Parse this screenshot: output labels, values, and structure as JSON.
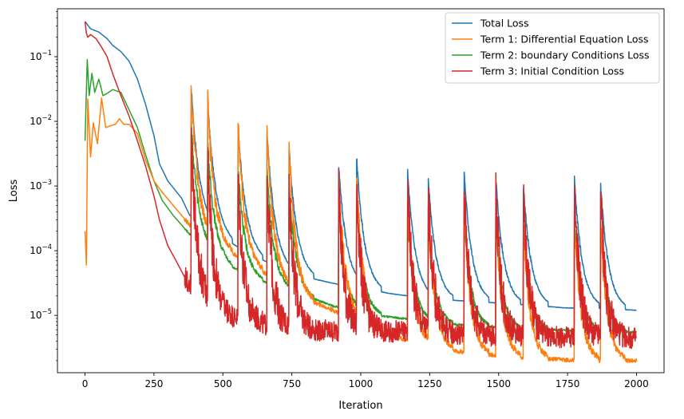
{
  "chart_data": {
    "type": "line",
    "title": "",
    "xlabel": "Iteration",
    "ylabel": "Loss",
    "xlim": [
      -100,
      2100
    ],
    "ylim": [
      1.3e-06,
      0.55
    ],
    "yscale": "log",
    "grid": false,
    "legend_position": "top-right",
    "x_ticks": [
      0,
      250,
      500,
      750,
      1000,
      1250,
      1500,
      1750,
      2000
    ],
    "x_tick_labels": [
      "0",
      "250",
      "500",
      "750",
      "1000",
      "1250",
      "1500",
      "1750",
      "2000"
    ],
    "y_ticks": [
      1e-05,
      0.0001,
      0.001,
      0.01,
      0.1
    ],
    "y_tick_labels": [
      {
        "base": "10",
        "exp": "−5"
      },
      {
        "base": "10",
        "exp": "−4"
      },
      {
        "base": "10",
        "exp": "−3"
      },
      {
        "base": "10",
        "exp": "−2"
      },
      {
        "base": "10",
        "exp": "−1"
      }
    ],
    "spike_iterations": [
      385,
      445,
      555,
      660,
      740,
      920,
      985,
      1170,
      1245,
      1375,
      1490,
      1590,
      1775,
      1870
    ],
    "series": [
      {
        "name": "Total Loss",
        "color": "#1f77b4",
        "x": [
          0,
          20,
          50,
          80,
          100,
          130,
          160,
          190,
          220,
          250,
          270,
          300,
          350,
          380,
          420,
          500,
          560,
          650,
          750,
          850,
          920,
          1000,
          1100,
          1170,
          1250,
          1350,
          1450,
          1550,
          1650,
          1750,
          1850,
          2000
        ],
        "values": [
          0.35,
          0.27,
          0.24,
          0.19,
          0.15,
          0.12,
          0.085,
          0.045,
          0.018,
          0.006,
          0.0022,
          0.0012,
          0.00065,
          0.00035,
          0.00028,
          0.00016,
          0.00011,
          7e-05,
          4.5e-05,
          3.5e-05,
          3e-05,
          2.7e-05,
          2.2e-05,
          2e-05,
          1.8e-05,
          1.7e-05,
          1.6e-05,
          1.5e-05,
          1.4e-05,
          1.3e-05,
          1.3e-05,
          1.2e-05
        ]
      },
      {
        "name": "Term 1: Differential Equation Loss",
        "color": "#ff7f0e",
        "x": [
          0,
          5,
          10,
          20,
          30,
          45,
          60,
          75,
          90,
          110,
          125,
          140,
          160,
          190,
          220,
          250,
          280,
          320,
          380,
          450,
          520,
          600,
          700,
          800,
          900,
          1000,
          1100,
          1200,
          1300,
          1400,
          1500,
          1600,
          1700,
          1800,
          1900,
          2000
        ],
        "values": [
          0.0002,
          6e-05,
          0.022,
          0.0028,
          0.0095,
          0.0045,
          0.023,
          0.008,
          0.0085,
          0.009,
          0.011,
          0.009,
          0.009,
          0.0065,
          0.0025,
          0.0012,
          0.0008,
          0.0005,
          0.00025,
          0.00015,
          0.0001,
          6e-05,
          3.5e-05,
          1.8e-05,
          1.2e-05,
          7.5e-06,
          5e-06,
          3.8e-06,
          3e-06,
          2.6e-06,
          2.4e-06,
          2.2e-06,
          2.1e-06,
          2e-06,
          2e-06,
          2e-06
        ]
      },
      {
        "name": "Term 2: boundary Conditions Loss",
        "color": "#2ca02c",
        "x": [
          0,
          8,
          15,
          25,
          35,
          50,
          65,
          80,
          100,
          130,
          160,
          190,
          220,
          250,
          280,
          320,
          380,
          450,
          520,
          600,
          700,
          800,
          900,
          1000,
          1100,
          1200,
          1300,
          1400,
          1500,
          1600,
          1700,
          1800,
          1900,
          2000
        ],
        "values": [
          0.005,
          0.09,
          0.025,
          0.055,
          0.028,
          0.045,
          0.025,
          0.027,
          0.031,
          0.028,
          0.015,
          0.008,
          0.003,
          0.0012,
          0.0006,
          0.00035,
          0.00018,
          0.0001,
          6e-05,
          4e-05,
          2.8e-05,
          2e-05,
          1.4e-05,
          1.1e-05,
          9.5e-06,
          8.5e-06,
          7.5e-06,
          7e-06,
          6.5e-06,
          6e-06,
          6e-06,
          5.7e-06,
          5.6e-06,
          5.5e-06
        ]
      },
      {
        "name": "Term 3: Initial Condition Loss",
        "color": "#d62728",
        "x": [
          0,
          5,
          10,
          20,
          40,
          60,
          80,
          100,
          130,
          160,
          190,
          220,
          250,
          270,
          300,
          330,
          360,
          380,
          450,
          520,
          600,
          700,
          800,
          900,
          1000,
          1100,
          1200,
          1300,
          1400,
          1500,
          1600,
          1700,
          1800,
          1900,
          2000
        ],
        "values": [
          0.35,
          0.23,
          0.2,
          0.22,
          0.19,
          0.14,
          0.1,
          0.055,
          0.025,
          0.012,
          0.005,
          0.002,
          0.0007,
          0.0003,
          0.00012,
          7e-05,
          4e-05,
          3e-05,
          1.5e-05,
          1e-05,
          8e-06,
          6.5e-06,
          6e-06,
          5.8e-06,
          5.8e-06,
          5.7e-06,
          5.5e-06,
          5.2e-06,
          5e-06,
          4.9e-06,
          4.8e-06,
          4.7e-06,
          4.6e-06,
          4.5e-06,
          4.5e-06
        ]
      }
    ]
  }
}
